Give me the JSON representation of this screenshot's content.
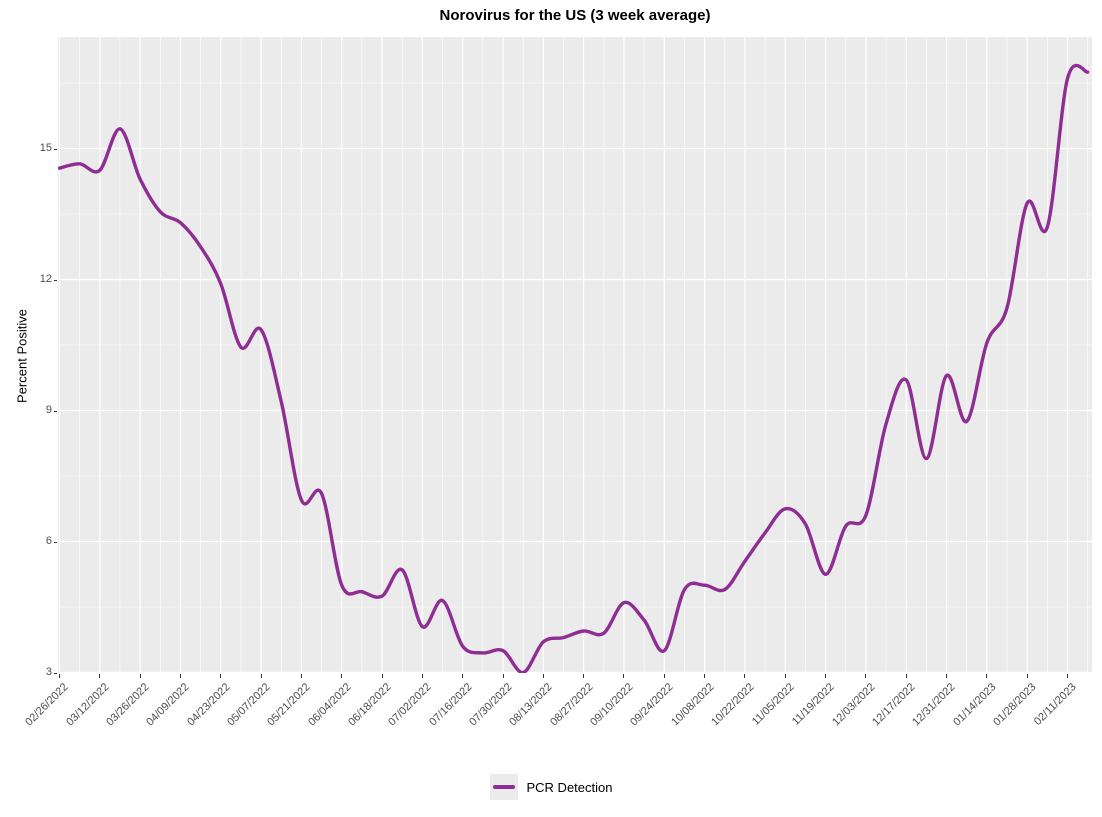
{
  "chart_data": {
    "type": "line",
    "title": "Norovirus for the US (3 week average)",
    "xlabel": "",
    "ylabel": "Percent Positive",
    "grid": true,
    "legend_position": "bottom",
    "panel_bg": "#ebebeb",
    "grid_color": "#ffffff",
    "tick_text_color": "#4d4d4d",
    "y_ticks": [
      3,
      6,
      9,
      12,
      15
    ],
    "y_minor_gridlines": [
      4.5,
      7.5,
      10.5,
      13.5,
      16.5
    ],
    "ylim_panel": [
      2.95,
      17.56
    ],
    "x_tick_labels": [
      "02/26/2022",
      "03/12/2022",
      "03/26/2022",
      "04/09/2022",
      "04/23/2022",
      "05/07/2022",
      "05/21/2022",
      "06/04/2022",
      "06/18/2022",
      "07/02/2022",
      "07/16/2022",
      "07/30/2022",
      "08/13/2022",
      "08/27/2022",
      "09/10/2022",
      "09/24/2022",
      "10/08/2022",
      "10/22/2022",
      "11/05/2022",
      "11/19/2022",
      "12/03/2022",
      "12/17/2022",
      "12/31/2022",
      "01/14/2023",
      "01/28/2023",
      "02/11/2023"
    ],
    "x": [
      "02/26/2022",
      "03/05/2022",
      "03/12/2022",
      "03/19/2022",
      "03/26/2022",
      "04/02/2022",
      "04/09/2022",
      "04/16/2022",
      "04/23/2022",
      "04/30/2022",
      "05/07/2022",
      "05/14/2022",
      "05/21/2022",
      "05/28/2022",
      "06/04/2022",
      "06/11/2022",
      "06/18/2022",
      "06/25/2022",
      "07/02/2022",
      "07/09/2022",
      "07/16/2022",
      "07/23/2022",
      "07/30/2022",
      "08/06/2022",
      "08/13/2022",
      "08/20/2022",
      "08/27/2022",
      "09/03/2022",
      "09/10/2022",
      "09/17/2022",
      "09/24/2022",
      "10/01/2022",
      "10/08/2022",
      "10/15/2022",
      "10/22/2022",
      "10/29/2022",
      "11/05/2022",
      "11/12/2022",
      "11/19/2022",
      "11/26/2022",
      "12/03/2022",
      "12/10/2022",
      "12/17/2022",
      "12/24/2022",
      "12/31/2022",
      "01/07/2023",
      "01/14/2023",
      "01/21/2023",
      "01/28/2023",
      "02/04/2023",
      "02/11/2023",
      "02/18/2023"
    ],
    "series": [
      {
        "name": "PCR Detection",
        "color": "#8e2e93",
        "values": [
          14.55,
          14.65,
          14.5,
          15.45,
          14.3,
          13.55,
          13.3,
          12.75,
          11.9,
          10.45,
          10.85,
          9.2,
          6.95,
          7.1,
          5.0,
          4.85,
          4.75,
          5.35,
          4.05,
          4.65,
          3.6,
          3.45,
          3.5,
          3.0,
          3.7,
          3.8,
          3.95,
          3.9,
          4.6,
          4.2,
          3.5,
          4.9,
          5.0,
          4.9,
          5.55,
          6.2,
          6.75,
          6.4,
          5.25,
          6.35,
          6.6,
          8.7,
          9.7,
          7.9,
          9.8,
          8.75,
          10.55,
          11.35,
          13.75,
          13.2,
          16.6,
          16.75
        ]
      }
    ]
  }
}
